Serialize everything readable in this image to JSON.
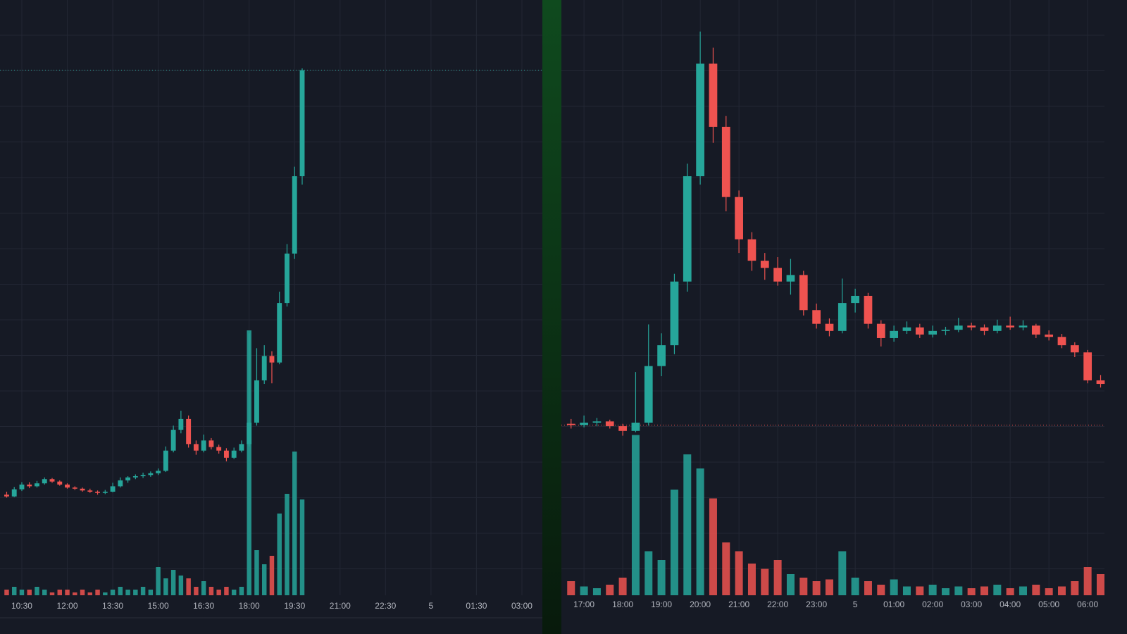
{
  "chart_data": [
    {
      "type": "candlestick",
      "up_color": "#26a69a",
      "down_color": "#ef5350",
      "grid": true,
      "xlim": [
        -0.88,
        70.7
      ],
      "ylim": [
        0,
        100
      ],
      "vlim": [
        0,
        100
      ],
      "price_line": 88.2,
      "xticks": [
        {
          "value": 2,
          "label": "10:30"
        },
        {
          "value": 8,
          "label": "12:00"
        },
        {
          "value": 14,
          "label": "13:30"
        },
        {
          "value": 20,
          "label": "15:00"
        },
        {
          "value": 26,
          "label": "16:30"
        },
        {
          "value": 32,
          "label": "18:00"
        },
        {
          "value": 38,
          "label": "19:30"
        },
        {
          "value": 44,
          "label": "21:00"
        },
        {
          "value": 50,
          "label": "22:30"
        },
        {
          "value": 56,
          "label": "5"
        },
        {
          "value": 62,
          "label": "01:30"
        },
        {
          "value": 68,
          "label": "03:00"
        }
      ],
      "ohlc": [
        [
          16.9,
          17.4,
          16.4,
          16.6
        ],
        [
          16.6,
          18.2,
          16.5,
          17.8
        ],
        [
          17.8,
          19.0,
          17.5,
          18.6
        ],
        [
          18.6,
          19.0,
          18.0,
          18.3
        ],
        [
          18.3,
          19.2,
          18.1,
          18.8
        ],
        [
          18.8,
          19.8,
          18.6,
          19.5
        ],
        [
          19.5,
          19.7,
          18.9,
          19.1
        ],
        [
          19.1,
          19.3,
          18.4,
          18.6
        ],
        [
          18.6,
          18.8,
          17.9,
          18.1
        ],
        [
          18.1,
          18.3,
          17.7,
          17.9
        ],
        [
          17.9,
          18.1,
          17.4,
          17.6
        ],
        [
          17.6,
          17.9,
          17.2,
          17.4
        ],
        [
          17.4,
          17.6,
          16.9,
          17.2
        ],
        [
          17.2,
          17.7,
          17.0,
          17.4
        ],
        [
          17.4,
          18.9,
          17.3,
          18.3
        ],
        [
          18.3,
          19.8,
          18.1,
          19.3
        ],
        [
          19.3,
          20.0,
          18.9,
          19.8
        ],
        [
          19.8,
          20.3,
          19.5,
          20.0
        ],
        [
          20.0,
          20.6,
          19.7,
          20.2
        ],
        [
          20.2,
          20.8,
          19.9,
          20.5
        ],
        [
          20.5,
          21.3,
          20.2,
          20.9
        ],
        [
          20.9,
          25.0,
          20.7,
          24.3
        ],
        [
          24.3,
          28.5,
          24.0,
          27.8
        ],
        [
          27.8,
          31.0,
          27.2,
          29.6
        ],
        [
          29.6,
          30.2,
          24.8,
          25.4
        ],
        [
          25.4,
          26.0,
          23.6,
          24.3
        ],
        [
          24.3,
          27.0,
          24.0,
          26.0
        ],
        [
          26.0,
          26.4,
          24.5,
          24.9
        ],
        [
          24.9,
          25.3,
          23.8,
          24.3
        ],
        [
          24.3,
          24.7,
          22.5,
          23.1
        ],
        [
          23.1,
          24.8,
          22.9,
          24.3
        ],
        [
          24.3,
          26.0,
          24.0,
          25.4
        ],
        [
          25.4,
          44.0,
          25.0,
          29.0
        ],
        [
          29.0,
          41.5,
          28.5,
          36.1
        ],
        [
          36.1,
          42.0,
          35.5,
          40.2
        ],
        [
          40.2,
          41.0,
          35.6,
          39.1
        ],
        [
          39.1,
          51.0,
          38.8,
          49.1
        ],
        [
          49.1,
          59.0,
          48.5,
          57.4
        ],
        [
          57.4,
          72.0,
          56.5,
          70.4
        ],
        [
          70.4,
          88.5,
          69.0,
          88.2
        ]
      ],
      "volume": [
        2,
        3,
        2,
        2,
        3,
        2,
        1,
        2,
        2,
        1,
        2,
        1,
        2,
        1,
        2,
        3,
        2,
        2,
        3,
        2,
        10,
        6,
        9,
        7,
        6,
        3,
        5,
        3,
        2,
        3,
        2,
        3,
        94,
        16,
        11,
        14,
        29,
        36,
        51,
        34
      ]
    },
    {
      "type": "candlestick",
      "up_color": "#26a69a",
      "down_color": "#ef5350",
      "grid": true,
      "xlim": [
        -0.75,
        41.3
      ],
      "ylim": [
        0,
        100
      ],
      "vlim": [
        0,
        160
      ],
      "price_line": 28.6,
      "xticks": [
        {
          "value": 1,
          "label": "17:00"
        },
        {
          "value": 4,
          "label": "18:00"
        },
        {
          "value": 7,
          "label": "19:00"
        },
        {
          "value": 10,
          "label": "20:00"
        },
        {
          "value": 13,
          "label": "21:00"
        },
        {
          "value": 16,
          "label": "22:00"
        },
        {
          "value": 19,
          "label": "23:00"
        },
        {
          "value": 22,
          "label": "5"
        },
        {
          "value": 25,
          "label": "01:00"
        },
        {
          "value": 28,
          "label": "02:00"
        },
        {
          "value": 31,
          "label": "03:00"
        },
        {
          "value": 34,
          "label": "04:00"
        },
        {
          "value": 37,
          "label": "05:00"
        },
        {
          "value": 40,
          "label": "06:00"
        }
      ],
      "ohlc": [
        [
          28.8,
          29.6,
          28.0,
          28.6
        ],
        [
          28.6,
          30.2,
          28.2,
          29.0
        ],
        [
          29.0,
          29.8,
          28.4,
          29.2
        ],
        [
          29.2,
          29.5,
          28.0,
          28.4
        ],
        [
          28.4,
          28.8,
          26.8,
          27.6
        ],
        [
          27.6,
          37.5,
          27.4,
          29.0
        ],
        [
          29.0,
          45.5,
          28.5,
          38.5
        ],
        [
          38.5,
          44.0,
          36.8,
          42.0
        ],
        [
          42.0,
          54.0,
          40.5,
          52.7
        ],
        [
          52.7,
          72.5,
          51.0,
          70.4
        ],
        [
          70.4,
          94.7,
          69.0,
          89.3
        ],
        [
          89.3,
          92.0,
          76.0,
          78.7
        ],
        [
          78.7,
          80.5,
          64.5,
          66.9
        ],
        [
          66.9,
          68.0,
          57.5,
          59.8
        ],
        [
          59.8,
          61.0,
          54.5,
          56.2
        ],
        [
          56.2,
          57.5,
          53.0,
          55.0
        ],
        [
          55.0,
          56.8,
          52.0,
          52.7
        ],
        [
          52.7,
          56.5,
          50.5,
          53.8
        ],
        [
          53.8,
          54.5,
          47.0,
          47.9
        ],
        [
          47.9,
          49.0,
          44.8,
          45.6
        ],
        [
          45.6,
          46.5,
          43.5,
          44.4
        ],
        [
          44.4,
          53.2,
          44.0,
          49.1
        ],
        [
          49.1,
          51.5,
          47.5,
          50.3
        ],
        [
          50.3,
          50.8,
          44.8,
          45.6
        ],
        [
          45.6,
          46.2,
          41.8,
          43.2
        ],
        [
          43.2,
          45.3,
          42.6,
          44.4
        ],
        [
          44.4,
          46.0,
          43.9,
          45.0
        ],
        [
          45.0,
          45.6,
          43.2,
          43.8
        ],
        [
          43.8,
          45.3,
          43.3,
          44.4
        ],
        [
          44.4,
          45.1,
          43.7,
          44.6
        ],
        [
          44.6,
          46.6,
          44.2,
          45.3
        ],
        [
          45.3,
          45.8,
          44.5,
          45.0
        ],
        [
          45.0,
          45.5,
          43.7,
          44.4
        ],
        [
          44.4,
          46.3,
          44.0,
          45.3
        ],
        [
          45.3,
          46.8,
          44.6,
          45.0
        ],
        [
          45.0,
          46.2,
          44.5,
          45.3
        ],
        [
          45.3,
          45.6,
          43.2,
          43.8
        ],
        [
          43.8,
          44.5,
          42.8,
          43.4
        ],
        [
          43.4,
          43.9,
          41.5,
          42.0
        ],
        [
          42.0,
          42.5,
          40.0,
          40.8
        ],
        [
          40.8,
          41.2,
          35.6,
          36.1
        ],
        [
          36.1,
          37.0,
          34.9,
          35.5
        ]
      ],
      "volume": [
        8,
        5,
        4,
        6,
        10,
        91,
        25,
        20,
        60,
        80,
        72,
        55,
        30,
        25,
        18,
        15,
        20,
        12,
        10,
        8,
        9,
        25,
        10,
        8,
        6,
        9,
        5,
        5,
        6,
        4,
        5,
        4,
        5,
        6,
        4,
        5,
        6,
        4,
        5,
        8,
        16,
        12
      ]
    }
  ]
}
